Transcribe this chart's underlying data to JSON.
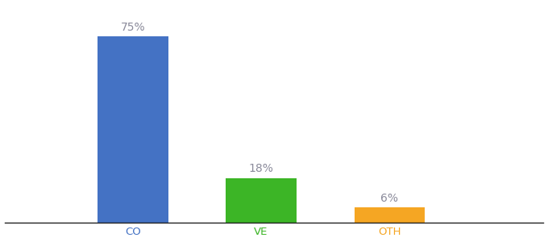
{
  "categories": [
    "CO",
    "VE",
    "OTH"
  ],
  "values": [
    75,
    18,
    6
  ],
  "bar_colors": [
    "#4472C4",
    "#3CB526",
    "#F5A623"
  ],
  "label_color": "#8B8B9B",
  "background_color": "#ffffff",
  "ylim": [
    0,
    88
  ],
  "bar_width": 0.55,
  "label_fontsize": 10,
  "tick_fontsize": 9.5,
  "x_positions": [
    1.0,
    2.0,
    3.0
  ],
  "xlim": [
    0.0,
    4.2
  ]
}
